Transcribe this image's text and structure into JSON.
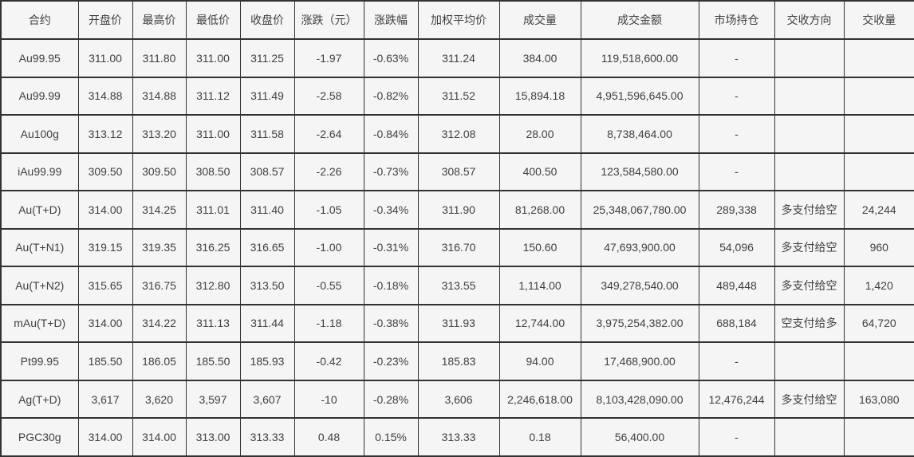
{
  "chart_data": {
    "type": "table",
    "columns": [
      "合约",
      "开盘价",
      "最高价",
      "最低价",
      "收盘价",
      "涨跌（元）",
      "涨跌幅",
      "加权平均价",
      "成交量",
      "成交金额",
      "市场持仓",
      "交收方向",
      "交收量"
    ],
    "rows": [
      [
        "Au99.95",
        "311.00",
        "311.80",
        "311.00",
        "311.25",
        "-1.97",
        "-0.63%",
        "311.24",
        "384.00",
        "119,518,600.00",
        "-",
        "",
        ""
      ],
      [
        "Au99.99",
        "314.88",
        "314.88",
        "311.12",
        "311.49",
        "-2.58",
        "-0.82%",
        "311.52",
        "15,894.18",
        "4,951,596,645.00",
        "-",
        "",
        ""
      ],
      [
        "Au100g",
        "313.12",
        "313.20",
        "311.00",
        "311.58",
        "-2.64",
        "-0.84%",
        "312.08",
        "28.00",
        "8,738,464.00",
        "-",
        "",
        ""
      ],
      [
        "iAu99.99",
        "309.50",
        "309.50",
        "308.50",
        "308.57",
        "-2.26",
        "-0.73%",
        "308.57",
        "400.50",
        "123,584,580.00",
        "-",
        "",
        ""
      ],
      [
        "Au(T+D)",
        "314.00",
        "314.25",
        "311.01",
        "311.40",
        "-1.05",
        "-0.34%",
        "311.90",
        "81,268.00",
        "25,348,067,780.00",
        "289,338",
        "多支付给空",
        "24,244"
      ],
      [
        "Au(T+N1)",
        "319.15",
        "319.35",
        "316.25",
        "316.65",
        "-1.00",
        "-0.31%",
        "316.70",
        "150.60",
        "47,693,900.00",
        "54,096",
        "多支付给空",
        "960"
      ],
      [
        "Au(T+N2)",
        "315.65",
        "316.75",
        "312.80",
        "313.50",
        "-0.55",
        "-0.18%",
        "313.55",
        "1,114.00",
        "349,278,540.00",
        "489,448",
        "多支付给空",
        "1,420"
      ],
      [
        "mAu(T+D)",
        "314.00",
        "314.22",
        "311.13",
        "311.44",
        "-1.18",
        "-0.38%",
        "311.93",
        "12,744.00",
        "3,975,254,382.00",
        "688,184",
        "空支付给多",
        "64,720"
      ],
      [
        "Pt99.95",
        "185.50",
        "186.05",
        "185.50",
        "185.93",
        "-0.42",
        "-0.23%",
        "185.83",
        "94.00",
        "17,468,900.00",
        "-",
        "",
        ""
      ],
      [
        "Ag(T+D)",
        "3,617",
        "3,620",
        "3,597",
        "3,607",
        "-10",
        "-0.28%",
        "3,606",
        "2,246,618.00",
        "8,103,428,090.00",
        "12,476,244",
        "多支付给空",
        "163,080"
      ],
      [
        "PGC30g",
        "314.00",
        "314.00",
        "313.00",
        "313.33",
        "0.48",
        "0.15%",
        "313.33",
        "0.18",
        "56,400.00",
        "-",
        "",
        ""
      ]
    ],
    "layout_hints": {
      "grid": "on",
      "cell_alignment": "center"
    }
  },
  "colors": {
    "cell_background": "#f5f5f5",
    "border": "#323232",
    "text": "#404040"
  }
}
